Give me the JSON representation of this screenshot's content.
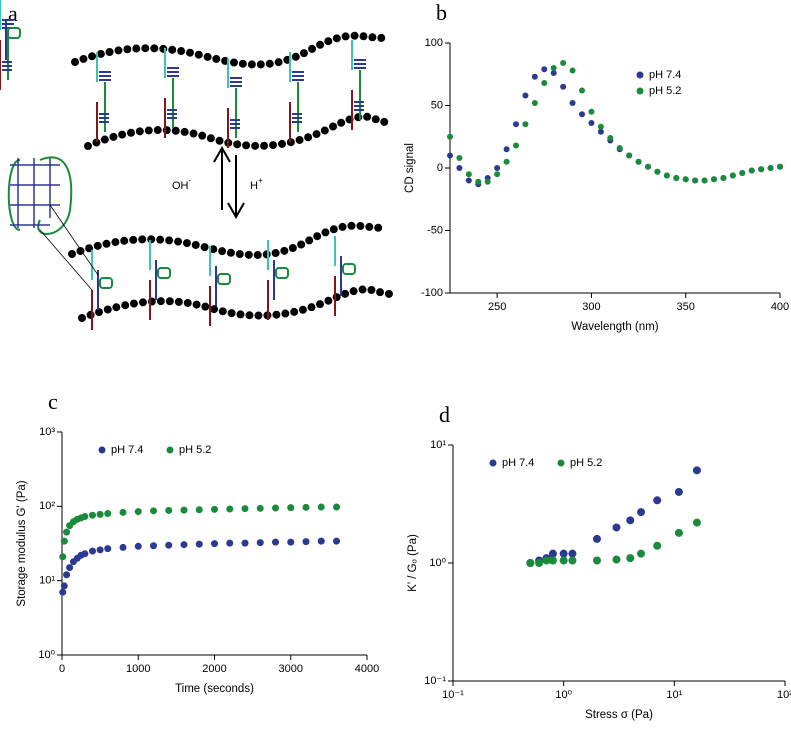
{
  "diagram": {
    "panel_label": "a",
    "base_label": "OH",
    "base_sup": "-",
    "acid_label": "H",
    "acid_sup": "+"
  },
  "chart_data": [
    {
      "type": "scatter",
      "panel_label": "b",
      "x_label": "Wavelength (nm)",
      "y_label": "CD signal",
      "x": [
        225,
        230,
        235,
        240,
        245,
        250,
        255,
        260,
        265,
        270,
        275,
        280,
        285,
        290,
        295,
        300,
        305,
        310,
        315,
        320,
        325,
        330,
        335,
        340,
        345,
        350,
        355,
        360,
        365,
        370,
        375,
        380,
        385,
        390,
        395,
        400
      ],
      "series": [
        {
          "name": "pH 7.4",
          "color": "#2b3990",
          "values": [
            10,
            0,
            -10,
            -13,
            -8,
            0,
            15,
            35,
            58,
            73,
            79,
            76,
            65,
            52,
            43,
            36,
            29,
            22,
            15,
            10,
            5,
            1,
            -3,
            -6,
            -8,
            -9,
            -10,
            -10,
            -9,
            -8,
            -6,
            -4,
            -2,
            -1,
            0,
            1
          ]
        },
        {
          "name": "pH 5.2",
          "color": "#1a8a3c",
          "values": [
            25,
            8,
            -5,
            -11,
            -11,
            -5,
            5,
            18,
            35,
            52,
            68,
            80,
            84,
            78,
            62,
            45,
            33,
            24,
            16,
            10,
            5,
            1,
            -3,
            -6,
            -8,
            -9,
            -10,
            -10,
            -9,
            -8,
            -6,
            -4,
            -2,
            -1,
            0,
            1
          ]
        }
      ],
      "xlim": [
        225,
        400
      ],
      "xticks": [
        250,
        300,
        350,
        400
      ],
      "ylim": [
        -100,
        100
      ],
      "yticks": [
        -100,
        -50,
        0,
        50,
        100
      ],
      "legend": "upper right"
    },
    {
      "type": "scatter",
      "panel_label": "c",
      "x_label": "Time (seconds)",
      "y_label": "Storage modulus G' (Pa)",
      "x": [
        10,
        30,
        60,
        100,
        150,
        200,
        250,
        300,
        400,
        500,
        600,
        800,
        1000,
        1200,
        1400,
        1600,
        1800,
        2000,
        2200,
        2400,
        2600,
        2800,
        3000,
        3200,
        3400,
        3600
      ],
      "series": [
        {
          "name": "pH 7.4",
          "color": "#2b3990",
          "values": [
            7,
            8.5,
            12,
            15,
            18,
            20,
            22,
            23,
            25,
            26,
            27,
            28,
            29,
            29.5,
            30,
            30.5,
            31,
            31.5,
            32,
            32,
            32.5,
            33,
            33,
            33.5,
            34,
            34
          ]
        },
        {
          "name": "pH 5.2",
          "color": "#1a8a3c",
          "values": [
            21,
            34,
            45,
            55,
            62,
            67,
            70,
            73,
            76,
            78,
            80,
            83,
            85,
            87,
            88,
            89,
            90,
            91,
            92,
            93,
            94,
            95,
            96,
            97,
            98,
            98
          ]
        }
      ],
      "xlim": [
        0,
        4000
      ],
      "xticks": [
        0,
        1000,
        2000,
        3000,
        4000
      ],
      "ylim": [
        1,
        1000
      ],
      "y_log": true,
      "yticks": [
        {
          "value": 1,
          "label": "10⁰"
        },
        {
          "value": 10,
          "label": "10¹"
        },
        {
          "value": 100,
          "label": "10²"
        },
        {
          "value": 1000,
          "label": "10³"
        }
      ],
      "legend": "upper left"
    },
    {
      "type": "scatter",
      "panel_label": "d",
      "x_label": "Stress σ (Pa)",
      "y_label": "K' / Gₒ (Pa)",
      "x": [
        0.5,
        0.6,
        0.7,
        0.8,
        1.0,
        1.2,
        2,
        3,
        4,
        5,
        7,
        11,
        16
      ],
      "series": [
        {
          "name": "pH 7.4",
          "color": "#2b3990",
          "values": [
            1.0,
            1.05,
            1.1,
            1.2,
            1.2,
            1.2,
            1.6,
            2.0,
            2.3,
            2.7,
            3.4,
            4.0,
            6.1
          ]
        },
        {
          "name": "pH 5.2",
          "color": "#1a8a3c",
          "values": [
            1.0,
            1.0,
            1.05,
            1.05,
            1.05,
            1.05,
            1.05,
            1.07,
            1.1,
            1.2,
            1.4,
            1.8,
            2.2
          ]
        }
      ],
      "xlim": [
        0.1,
        100
      ],
      "x_log": true,
      "xticks": [
        {
          "value": 0.1,
          "label": "10⁻¹"
        },
        {
          "value": 1,
          "label": "10⁰"
        },
        {
          "value": 10,
          "label": "10¹"
        },
        {
          "value": 100,
          "label": "10²"
        }
      ],
      "ylim": [
        0.1,
        10
      ],
      "y_log": true,
      "yticks": [
        {
          "value": 0.1,
          "label": "10⁻¹"
        },
        {
          "value": 1,
          "label": "10⁰"
        },
        {
          "value": 10,
          "label": "10¹"
        }
      ],
      "legend": "upper left"
    }
  ]
}
